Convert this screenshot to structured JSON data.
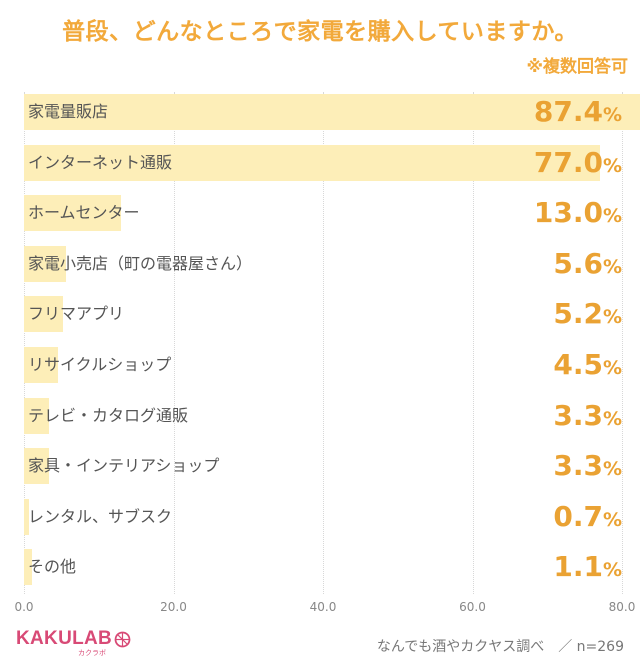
{
  "header": {
    "title": "普段、どんなところで家電を購入していますか。",
    "note": "※複数回答可"
  },
  "chart_data": {
    "type": "bar",
    "orientation": "horizontal",
    "title": "普段、どんなところで家電を購入していますか。",
    "categories": [
      "家電量販店",
      "インターネット通販",
      "ホームセンター",
      "家電小売店（町の電器屋さん）",
      "フリマアプリ",
      "リサイクルショップ",
      "テレビ・カタログ通販",
      "家具・インテリアショップ",
      "レンタル、サブスク",
      "その他"
    ],
    "values": [
      87.4,
      77.0,
      13.0,
      5.6,
      5.2,
      4.5,
      3.3,
      3.3,
      0.7,
      1.1
    ],
    "value_labels": [
      "87.4",
      "77.0",
      "13.0",
      "5.6",
      "5.2",
      "4.5",
      "3.3",
      "3.3",
      "0.7",
      "1.1"
    ],
    "unit": "%",
    "xlim": [
      0,
      80
    ],
    "ticks": [
      "0.0",
      "20.0",
      "40.0",
      "60.0",
      "80.0"
    ],
    "grid": true,
    "bar_color": "#fdeeb8",
    "value_color": "#eaa233"
  },
  "footer": {
    "logo_text": "KAKULAB",
    "logo_sub": "カクラボ",
    "source": "なんでも酒やカクヤス調べ　／ n=269"
  },
  "colors": {
    "title": "#f2a93b",
    "logo": "#d84a76"
  }
}
